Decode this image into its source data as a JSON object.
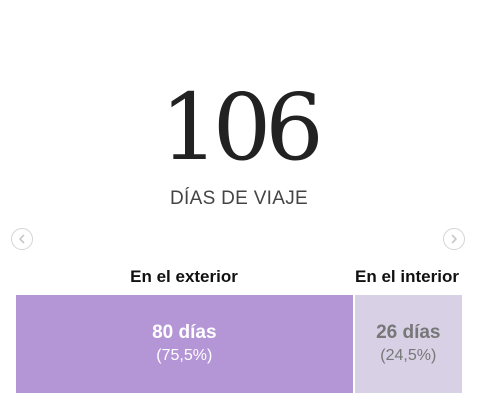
{
  "headline": {
    "number": "106",
    "subtitle": "DÍAS DE VIAJE"
  },
  "navigation": {
    "prev_icon": "chevron-left-icon",
    "next_icon": "chevron-right-icon"
  },
  "breakdown": {
    "segments": [
      {
        "label": "En el exterior",
        "days_text": "80 días",
        "percent_text": "(75,5%)",
        "days": 80,
        "percent": 75.5,
        "color": "#b496d6"
      },
      {
        "label": "En el interior",
        "days_text": "26 días",
        "percent_text": "(24,5%)",
        "days": 26,
        "percent": 24.5,
        "color": "#d8d0e4"
      }
    ]
  }
}
